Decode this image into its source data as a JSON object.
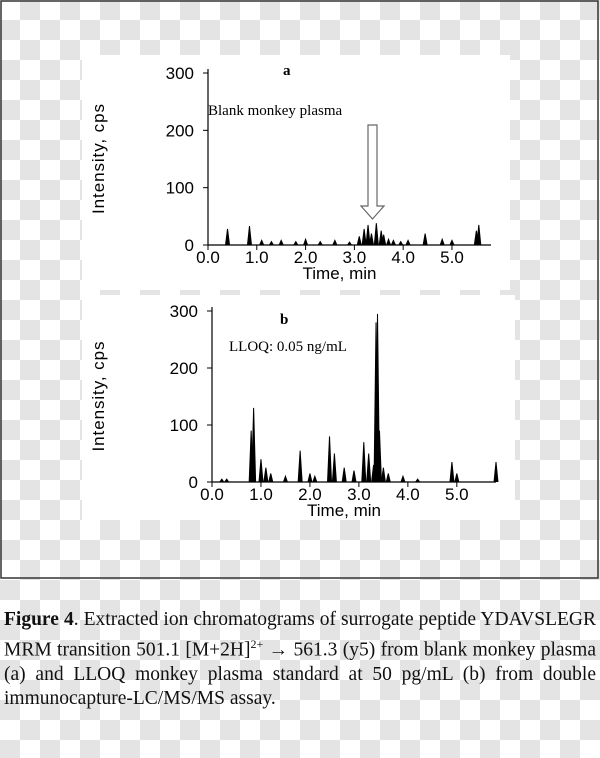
{
  "chart_data": [
    {
      "type": "line",
      "label": "a",
      "annotation": "Blank monkey plasma",
      "y_label": "Intensity, cps",
      "x_label": "Time, min",
      "color": "#000000",
      "x": [
        0.4,
        0.85,
        1.1,
        1.3,
        1.5,
        1.8,
        2.0,
        2.3,
        2.6,
        2.9,
        3.1,
        3.2,
        3.28,
        3.35,
        3.45,
        3.55,
        3.6,
        3.7,
        3.8,
        3.95,
        4.1,
        4.45,
        4.8,
        5.0,
        5.5,
        5.55
      ],
      "values": [
        28,
        33,
        8,
        6,
        8,
        6,
        10,
        6,
        8,
        5,
        15,
        28,
        35,
        20,
        38,
        25,
        18,
        10,
        8,
        6,
        8,
        20,
        10,
        8,
        25,
        35
      ],
      "xlim": [
        0,
        5.8
      ],
      "ylim": [
        0,
        300
      ],
      "xticks": [
        {
          "value": 0,
          "label": "0.0"
        },
        {
          "value": 1,
          "label": "1.0"
        },
        {
          "value": 2,
          "label": "2.0"
        },
        {
          "value": 3,
          "label": "3.0"
        },
        {
          "value": 4,
          "label": "4.0"
        },
        {
          "value": 5,
          "label": "5.0"
        }
      ],
      "yticks": [
        0,
        100,
        200,
        300
      ]
    },
    {
      "type": "line",
      "label": "b",
      "annotation": "LLOQ: 0.05 ng/mL",
      "y_label": "Intensity, cps",
      "x_label": "Time, min",
      "color": "#000000",
      "x": [
        0.2,
        0.3,
        0.8,
        0.85,
        1.0,
        1.1,
        1.2,
        1.5,
        1.8,
        2.0,
        2.1,
        2.4,
        2.5,
        2.7,
        2.9,
        3.1,
        3.2,
        3.3,
        3.35,
        3.38,
        3.42,
        3.5,
        3.6,
        3.9,
        4.2,
        4.9,
        5.0,
        5.8
      ],
      "values": [
        5,
        5,
        90,
        130,
        40,
        25,
        15,
        10,
        55,
        15,
        10,
        80,
        50,
        25,
        20,
        70,
        50,
        30,
        280,
        295,
        90,
        25,
        15,
        10,
        5,
        35,
        15,
        35
      ],
      "xlim": [
        0,
        5.8
      ],
      "ylim": [
        0,
        300
      ],
      "xticks": [
        {
          "value": 0,
          "label": "0.0"
        },
        {
          "value": 1,
          "label": "1.0"
        },
        {
          "value": 2,
          "label": "2.0"
        },
        {
          "value": 3,
          "label": "3.0"
        },
        {
          "value": 4,
          "label": "4.0"
        },
        {
          "value": 5,
          "label": "5.0"
        }
      ],
      "yticks": [
        0,
        100,
        200,
        300
      ]
    }
  ],
  "caption": {
    "label": "Figure 4",
    "text": ". Extracted ion chromatograms of surrogate peptide YDAVSLEGR MRM transition 501.1 [M+2H]",
    "superscript": "2+",
    "text_after": " → 561.3 (y5) from blank monkey plasma (a) and LLOQ monkey plasma standard at 50 pg/mL (b) from double immunocapture-LC/MS/MS assay."
  }
}
